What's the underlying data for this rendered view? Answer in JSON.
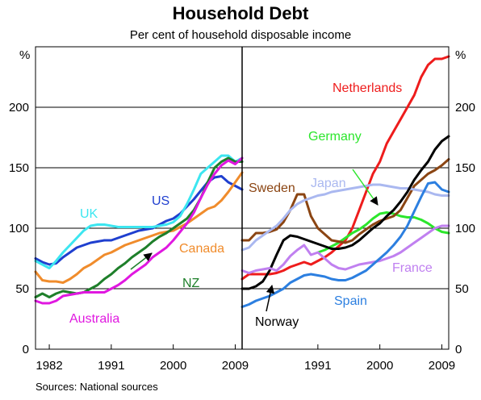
{
  "title": "Household Debt",
  "subtitle": "Per cent of household disposable income",
  "source": "Sources: National sources",
  "unit_left": "%",
  "unit_right": "%",
  "chart_data": [
    {
      "type": "line",
      "panel": "left",
      "xlim": [
        1980,
        2010
      ],
      "ylim": [
        0,
        250
      ],
      "yticks": [
        0,
        50,
        100,
        150,
        200
      ],
      "xticks": [
        "1982",
        "1991",
        "2000",
        "2009"
      ],
      "xtick_values": [
        1982,
        1991,
        2000,
        2009
      ],
      "grid": true,
      "series": [
        {
          "name": "US",
          "color": "#1f3fcf",
          "x": [
            1980,
            1981,
            1982,
            1983,
            1984,
            1985,
            1986,
            1987,
            1988,
            1989,
            1990,
            1991,
            1992,
            1993,
            1994,
            1995,
            1996,
            1997,
            1998,
            1999,
            2000,
            2001,
            2002,
            2003,
            2004,
            2005,
            2006,
            2007,
            2008,
            2009,
            2010
          ],
          "y": [
            75,
            72,
            70,
            71,
            76,
            80,
            84,
            86,
            88,
            89,
            90,
            90,
            92,
            94,
            96,
            98,
            99,
            100,
            103,
            106,
            108,
            112,
            118,
            124,
            131,
            138,
            142,
            143,
            138,
            135,
            132
          ]
        },
        {
          "name": "UK",
          "color": "#3ce6f0",
          "x": [
            1980,
            1981,
            1982,
            1983,
            1984,
            1985,
            1986,
            1987,
            1988,
            1989,
            1990,
            1991,
            1992,
            1993,
            1994,
            1995,
            1996,
            1997,
            1998,
            1999,
            2000,
            2001,
            2002,
            2003,
            2004,
            2005,
            2006,
            2007,
            2008,
            2009,
            2010
          ],
          "y": [
            73,
            70,
            67,
            73,
            80,
            86,
            92,
            98,
            102,
            103,
            103,
            102,
            101,
            101,
            101,
            101,
            101,
            101,
            102,
            103,
            105,
            110,
            120,
            132,
            145,
            150,
            155,
            160,
            160,
            155,
            158
          ]
        },
        {
          "name": "Canada",
          "color": "#f08c2c",
          "x": [
            1980,
            1981,
            1982,
            1983,
            1984,
            1985,
            1986,
            1987,
            1988,
            1989,
            1990,
            1991,
            1992,
            1993,
            1994,
            1995,
            1996,
            1997,
            1998,
            1999,
            2000,
            2001,
            2002,
            2003,
            2004,
            2005,
            2006,
            2007,
            2008,
            2009,
            2010
          ],
          "y": [
            64,
            57,
            56,
            56,
            55,
            58,
            62,
            67,
            70,
            74,
            78,
            80,
            83,
            86,
            88,
            90,
            92,
            94,
            96,
            97,
            98,
            101,
            104,
            108,
            112,
            116,
            118,
            123,
            130,
            138,
            146
          ]
        },
        {
          "name": "NZ",
          "color": "#1e7f2a",
          "x": [
            1980,
            1981,
            1982,
            1983,
            1984,
            1985,
            1986,
            1987,
            1988,
            1989,
            1990,
            1991,
            1992,
            1993,
            1994,
            1995,
            1996,
            1997,
            1998,
            1999,
            2000,
            2001,
            2002,
            2003,
            2004,
            2005,
            2006,
            2007,
            2008,
            2009,
            2010
          ],
          "y": [
            43,
            46,
            43,
            46,
            48,
            47,
            46,
            47,
            50,
            53,
            58,
            62,
            67,
            71,
            76,
            80,
            84,
            89,
            93,
            96,
            100,
            104,
            108,
            115,
            125,
            138,
            150,
            155,
            158,
            155,
            155
          ]
        },
        {
          "name": "Australia",
          "color": "#e018e0",
          "x": [
            1980,
            1981,
            1982,
            1983,
            1984,
            1985,
            1986,
            1987,
            1988,
            1989,
            1990,
            1991,
            1992,
            1993,
            1994,
            1995,
            1996,
            1997,
            1998,
            1999,
            2000,
            2001,
            2002,
            2003,
            2004,
            2005,
            2006,
            2007,
            2008,
            2009,
            2010
          ],
          "y": [
            40,
            38,
            38,
            40,
            44,
            45,
            46,
            47,
            47,
            47,
            47,
            50,
            53,
            57,
            62,
            66,
            70,
            76,
            80,
            84,
            90,
            97,
            104,
            113,
            125,
            136,
            145,
            152,
            156,
            153,
            158
          ]
        }
      ]
    },
    {
      "type": "line",
      "panel": "right",
      "xlim": [
        1980,
        2010
      ],
      "ylim": [
        0,
        250
      ],
      "yticks": [
        0,
        50,
        100,
        150,
        200
      ],
      "xticks": [
        "1991",
        "2000",
        "2009"
      ],
      "xtick_values": [
        1991,
        2000,
        2009
      ],
      "grid": true,
      "series": [
        {
          "name": "Netherlands",
          "color": "#ee1c1c",
          "x": [
            1980,
            1981,
            1982,
            1983,
            1984,
            1985,
            1986,
            1987,
            1988,
            1989,
            1990,
            1991,
            1992,
            1993,
            1994,
            1995,
            1996,
            1997,
            1998,
            1999,
            2000,
            2001,
            2002,
            2003,
            2004,
            2005,
            2006,
            2007,
            2008,
            2009,
            2010
          ],
          "y": [
            58,
            62,
            62,
            62,
            62,
            63,
            65,
            68,
            70,
            72,
            70,
            73,
            76,
            80,
            85,
            90,
            100,
            115,
            130,
            145,
            155,
            170,
            180,
            190,
            200,
            210,
            225,
            235,
            240,
            240,
            242
          ]
        },
        {
          "name": "Germany",
          "color": "#2ce62c",
          "x": [
            1991,
            1992,
            1993,
            1994,
            1995,
            1996,
            1997,
            1998,
            1999,
            2000,
            2001,
            2002,
            2003,
            2004,
            2005,
            2006,
            2007,
            2008,
            2009,
            2010
          ],
          "y": [
            80,
            82,
            85,
            88,
            92,
            96,
            99,
            103,
            108,
            112,
            113,
            112,
            110,
            109,
            109,
            107,
            104,
            100,
            97,
            96
          ]
        },
        {
          "name": "Sweden",
          "color": "#8b4513",
          "x": [
            1980,
            1981,
            1982,
            1983,
            1984,
            1985,
            1986,
            1987,
            1988,
            1989,
            1990,
            1991,
            1992,
            1993,
            1994,
            1995,
            1996,
            1997,
            1998,
            1999,
            2000,
            2001,
            2002,
            2003,
            2004,
            2005,
            2006,
            2007,
            2008,
            2009,
            2010
          ],
          "y": [
            90,
            90,
            96,
            96,
            97,
            99,
            105,
            115,
            128,
            128,
            110,
            100,
            95,
            90,
            89,
            88,
            90,
            95,
            99,
            103,
            106,
            108,
            110,
            115,
            125,
            135,
            140,
            145,
            148,
            152,
            157
          ]
        },
        {
          "name": "Japan",
          "color": "#aab8f0",
          "x": [
            1980,
            1981,
            1982,
            1983,
            1984,
            1985,
            1986,
            1987,
            1988,
            1989,
            1990,
            1991,
            1992,
            1993,
            1994,
            1995,
            1996,
            1997,
            1998,
            1999,
            2000,
            2001,
            2002,
            2003,
            2004,
            2005,
            2006,
            2007,
            2008,
            2009,
            2010
          ],
          "y": [
            82,
            84,
            90,
            94,
            98,
            102,
            108,
            115,
            120,
            123,
            125,
            127,
            128,
            130,
            131,
            132,
            133,
            134,
            135,
            136,
            136,
            135,
            134,
            133,
            133,
            132,
            131,
            130,
            128,
            127,
            127
          ]
        },
        {
          "name": "Norway",
          "color": "#000000",
          "x": [
            1980,
            1981,
            1982,
            1983,
            1984,
            1985,
            1986,
            1987,
            1988,
            1989,
            1990,
            1991,
            1992,
            1993,
            1994,
            1995,
            1996,
            1997,
            1998,
            1999,
            2000,
            2001,
            2002,
            2003,
            2004,
            2005,
            2006,
            2007,
            2008,
            2009,
            2010
          ],
          "y": [
            50,
            50,
            52,
            56,
            65,
            78,
            90,
            94,
            93,
            91,
            89,
            87,
            85,
            83,
            83,
            84,
            86,
            90,
            95,
            100,
            104,
            110,
            115,
            122,
            130,
            140,
            148,
            155,
            165,
            172,
            176
          ]
        },
        {
          "name": "France",
          "color": "#c080f0",
          "x": [
            1980,
            1981,
            1982,
            1983,
            1984,
            1985,
            1986,
            1987,
            1988,
            1989,
            1990,
            1991,
            1992,
            1993,
            1994,
            1995,
            1996,
            1997,
            1998,
            1999,
            2000,
            2001,
            2002,
            2003,
            2004,
            2005,
            2006,
            2007,
            2008,
            2009,
            2010
          ],
          "y": [
            65,
            63,
            65,
            66,
            67,
            65,
            70,
            77,
            82,
            86,
            78,
            80,
            75,
            70,
            67,
            66,
            68,
            70,
            71,
            72,
            73,
            75,
            77,
            80,
            84,
            88,
            92,
            96,
            100,
            102,
            102
          ]
        },
        {
          "name": "Spain",
          "color": "#2c7fe0",
          "x": [
            1980,
            1981,
            1982,
            1983,
            1984,
            1985,
            1986,
            1987,
            1988,
            1989,
            1990,
            1991,
            1992,
            1993,
            1994,
            1995,
            1996,
            1997,
            1998,
            1999,
            2000,
            2001,
            2002,
            2003,
            2004,
            2005,
            2006,
            2007,
            2008,
            2009,
            2010
          ],
          "y": [
            35,
            37,
            40,
            42,
            44,
            47,
            50,
            55,
            58,
            61,
            62,
            61,
            60,
            58,
            57,
            57,
            59,
            62,
            65,
            70,
            75,
            80,
            86,
            93,
            102,
            114,
            126,
            137,
            138,
            132,
            130
          ]
        }
      ]
    }
  ]
}
